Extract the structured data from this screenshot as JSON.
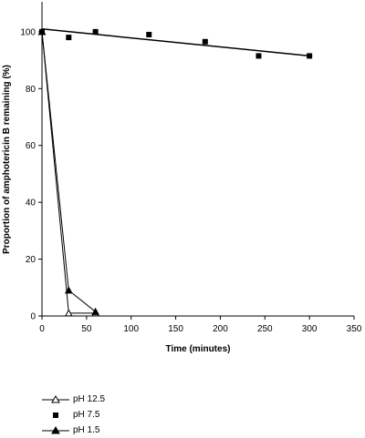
{
  "chart_data": {
    "type": "line",
    "title": "",
    "xlabel": "Time (minutes)",
    "ylabel": "Proportion of amphotericin B remaining (%)",
    "xlim": [
      0,
      350
    ],
    "ylim": [
      0,
      100
    ],
    "xticks": [
      0,
      50,
      100,
      150,
      200,
      250,
      300,
      350
    ],
    "yticks": [
      0,
      20,
      40,
      60,
      80,
      100
    ],
    "grid": false,
    "legend_position": "bottom-left",
    "series": [
      {
        "name": "pH 12.5",
        "marker": "open-triangle",
        "connected": true,
        "x": [
          0,
          30,
          60
        ],
        "y": [
          100,
          1,
          1
        ]
      },
      {
        "name": "pH 7.5",
        "marker": "filled-square",
        "connected": false,
        "x": [
          0,
          30,
          60,
          120,
          183,
          243,
          300
        ],
        "y": [
          100,
          98,
          100,
          99,
          96.5,
          91.5,
          91.5
        ]
      },
      {
        "name": "pH 1.5",
        "marker": "filled-triangle",
        "connected": true,
        "x": [
          0,
          30,
          60
        ],
        "y": [
          100,
          9,
          1.5
        ]
      }
    ],
    "trendline": {
      "series": "pH 7.5",
      "x": [
        0,
        300
      ],
      "y": [
        101,
        91.5
      ]
    }
  }
}
